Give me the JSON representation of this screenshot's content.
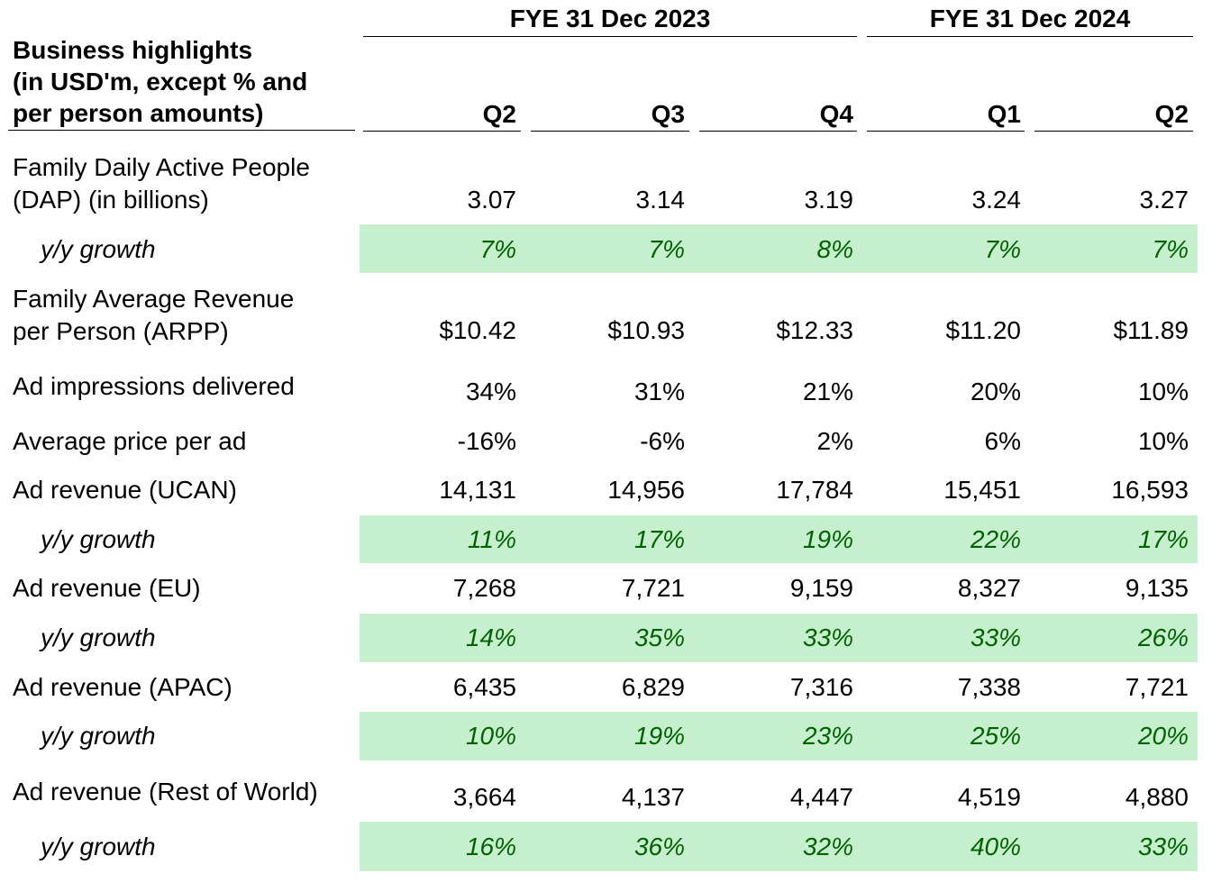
{
  "header": {
    "title_lines": [
      "Business highlights",
      "(in USD'm, except % and",
      "per person amounts)"
    ],
    "group_2023": "FYE 31 Dec 2023",
    "group_2024": "FYE 31 Dec 2024",
    "quarters": [
      "Q2",
      "Q3",
      "Q4",
      "Q1",
      "Q2"
    ]
  },
  "rows": {
    "dap": {
      "label_lines": [
        "Family Daily Active People",
        "(DAP) (in billions)"
      ],
      "values": [
        "3.07",
        "3.14",
        "3.19",
        "3.24",
        "3.27"
      ]
    },
    "dap_growth": {
      "label": "y/y growth",
      "values": [
        "7%",
        "7%",
        "8%",
        "7%",
        "7%"
      ]
    },
    "arpp": {
      "label_lines": [
        "Family Average Revenue",
        "per Person (ARPP)"
      ],
      "values": [
        "$10.42",
        "$10.93",
        "$12.33",
        "$11.20",
        "$11.89"
      ]
    },
    "impressions": {
      "label": "Ad impressions delivered",
      "values": [
        "34%",
        "31%",
        "21%",
        "20%",
        "10%"
      ]
    },
    "price": {
      "label": "Average price per ad",
      "values": [
        "-16%",
        "-6%",
        "2%",
        "6%",
        "10%"
      ]
    },
    "ucan": {
      "label": "Ad revenue (UCAN)",
      "values": [
        "14,131",
        "14,956",
        "17,784",
        "15,451",
        "16,593"
      ]
    },
    "ucan_growth": {
      "label": "y/y growth",
      "values": [
        "11%",
        "17%",
        "19%",
        "22%",
        "17%"
      ]
    },
    "eu": {
      "label": "Ad revenue (EU)",
      "values": [
        "7,268",
        "7,721",
        "9,159",
        "8,327",
        "9,135"
      ]
    },
    "eu_growth": {
      "label": "y/y growth",
      "values": [
        "14%",
        "35%",
        "33%",
        "33%",
        "26%"
      ]
    },
    "apac": {
      "label": "Ad revenue (APAC)",
      "values": [
        "6,435",
        "6,829",
        "7,316",
        "7,338",
        "7,721"
      ]
    },
    "apac_growth": {
      "label": "y/y growth",
      "values": [
        "10%",
        "19%",
        "23%",
        "25%",
        "20%"
      ]
    },
    "row": {
      "label": "Ad revenue (Rest of World)",
      "values": [
        "3,664",
        "4,137",
        "4,447",
        "4,519",
        "4,880"
      ]
    },
    "row_growth": {
      "label": "y/y growth",
      "values": [
        "16%",
        "36%",
        "32%",
        "40%",
        "33%"
      ]
    }
  },
  "colors": {
    "growth_band": "#c6efce",
    "growth_text": "#006100"
  }
}
